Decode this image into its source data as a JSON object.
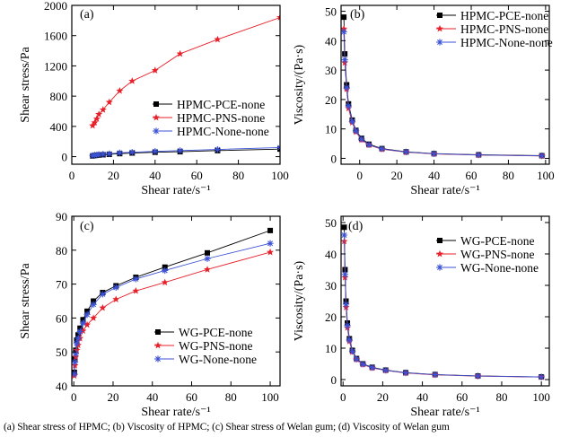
{
  "caption": "(a) Shear stress of HPMC; (b) Viscosity of HPMC; (c) Shear stress of Welan gum; (d) Viscosity of Welan gum",
  "chart_data": [
    {
      "panel": "(a)",
      "type": "line",
      "xlabel": "Shear rate/s⁻¹",
      "ylabel": "Shear stress/Pa",
      "xlim": [
        0,
        100
      ],
      "ylim": [
        -100,
        2000
      ],
      "xticks": [
        0,
        20,
        40,
        60,
        80,
        100
      ],
      "yticks": [
        0,
        400,
        800,
        1200,
        1600,
        2000
      ],
      "legend_position": "center-right",
      "series": [
        {
          "name": "HPMC-PCE-none",
          "color": "#000000",
          "marker": "square",
          "x": [
            10,
            11,
            12,
            13,
            15,
            18,
            23,
            29,
            40,
            52,
            70,
            100
          ],
          "y": [
            10,
            15,
            18,
            22,
            25,
            30,
            40,
            48,
            58,
            65,
            80,
            100
          ]
        },
        {
          "name": "HPMC-PNS-none",
          "color": "#e8202a",
          "marker": "star",
          "x": [
            10,
            11,
            12,
            13,
            15,
            18,
            23,
            29,
            40,
            52,
            70,
            100
          ],
          "y": [
            410,
            450,
            500,
            560,
            620,
            720,
            870,
            1000,
            1140,
            1360,
            1550,
            1840
          ]
        },
        {
          "name": "HPMC-None-none",
          "color": "#3b52d6",
          "marker": "asterisk",
          "x": [
            10,
            11,
            12,
            13,
            15,
            18,
            23,
            29,
            40,
            52,
            70,
            100
          ],
          "y": [
            15,
            20,
            22,
            28,
            32,
            38,
            50,
            58,
            70,
            80,
            95,
            120
          ]
        }
      ]
    },
    {
      "panel": "(b)",
      "type": "line",
      "xlabel": "Shear rate/s⁻¹",
      "ylabel": "Viscosity/(Pa·s)",
      "xlim": [
        -10,
        102
      ],
      "ylim": [
        -2,
        52
      ],
      "xticks": [
        0,
        20,
        40,
        60,
        80,
        100
      ],
      "yticks": [
        0,
        10,
        20,
        30,
        40,
        50
      ],
      "legend_position": "top-right",
      "series": [
        {
          "name": "HPMC-PCE-none",
          "color": "#000000",
          "marker": "square",
          "x": [
            -8.5,
            -8,
            -7,
            -6,
            -4,
            -2,
            1,
            5,
            12,
            25,
            40,
            64,
            98
          ],
          "y": [
            48,
            35.5,
            25,
            18.5,
            13,
            9.5,
            6.8,
            4.8,
            3.3,
            2.2,
            1.6,
            1.2,
            0.9
          ]
        },
        {
          "name": "HPMC-PNS-none",
          "color": "#e8202a",
          "marker": "star",
          "x": [
            -8.5,
            -8,
            -7,
            -6,
            -4,
            -2,
            1,
            5,
            12,
            25,
            40,
            64,
            98
          ],
          "y": [
            44,
            32.5,
            23.5,
            17,
            12.2,
            9,
            6.3,
            4.5,
            3.1,
            2.1,
            1.5,
            1.1,
            0.8
          ]
        },
        {
          "name": "HPMC-None-none",
          "color": "#3b52d6",
          "marker": "asterisk",
          "x": [
            -8.5,
            -8,
            -7,
            -6,
            -4,
            -2,
            1,
            5,
            12,
            25,
            40,
            64,
            98
          ],
          "y": [
            43,
            33.5,
            24,
            17.8,
            12.6,
            9.3,
            6.5,
            4.6,
            3.2,
            2.15,
            1.55,
            1.15,
            0.85
          ]
        }
      ]
    },
    {
      "panel": "(c)",
      "type": "line",
      "xlabel": "Shear rate/s⁻¹",
      "ylabel": "Shear stress/Pa",
      "xlim": [
        -1,
        105
      ],
      "ylim": [
        40,
        90
      ],
      "xticks": [
        0,
        20,
        40,
        60,
        80,
        100
      ],
      "yticks": [
        40,
        50,
        60,
        70,
        80,
        90
      ],
      "legend_position": "bottom-right",
      "series": [
        {
          "name": "WG-PCE-none",
          "color": "#000000",
          "marker": "square",
          "x": [
            0.3,
            0.6,
            1,
            1.5,
            2.2,
            3.2,
            4.7,
            6.8,
            10,
            14.7,
            21.5,
            31.6,
            46.4,
            68,
            100
          ],
          "y": [
            44,
            48,
            50.5,
            53.5,
            55,
            57,
            59.5,
            62,
            65,
            67.5,
            69.5,
            72,
            75,
            79.2,
            85.8
          ]
        },
        {
          "name": "WG-PNS-none",
          "color": "#e8202a",
          "marker": "star",
          "x": [
            0.3,
            0.6,
            1,
            1.5,
            2.2,
            3.2,
            4.7,
            6.8,
            10,
            14.7,
            21.5,
            31.6,
            46.4,
            68,
            100
          ],
          "y": [
            43,
            46,
            48.5,
            50.5,
            52,
            54,
            56.2,
            58,
            60,
            63,
            65.5,
            68,
            70.5,
            74.3,
            79.4
          ]
        },
        {
          "name": "WG-None-none",
          "color": "#3b52d6",
          "marker": "asterisk",
          "x": [
            0.3,
            0.6,
            1,
            1.5,
            2.2,
            3.2,
            4.7,
            6.8,
            10,
            14.7,
            21.5,
            31.6,
            46.4,
            68,
            100
          ],
          "y": [
            43.5,
            47,
            49.5,
            52.5,
            54,
            56,
            58.5,
            61,
            64,
            67,
            69,
            71.5,
            74,
            77.5,
            82
          ]
        }
      ]
    },
    {
      "panel": "(d)",
      "type": "line",
      "xlabel": "Shear rate/s⁻¹",
      "ylabel": "Viscosity/(Pa·s)",
      "xlim": [
        -1,
        104
      ],
      "ylim": [
        -2,
        52
      ],
      "xticks": [
        0,
        20,
        40,
        60,
        80,
        100
      ],
      "yticks": [
        0,
        10,
        20,
        30,
        40,
        50
      ],
      "legend_position": "top-right",
      "series": [
        {
          "name": "WG-PCE-none",
          "color": "#000000",
          "marker": "square",
          "x": [
            0.6,
            1,
            1.5,
            2.2,
            3.2,
            4.7,
            6.8,
            10,
            14.7,
            21.5,
            31.6,
            46.4,
            68,
            100
          ],
          "y": [
            48.5,
            35,
            25,
            18,
            13,
            9.3,
            6.7,
            5,
            3.9,
            3,
            2.2,
            1.6,
            1.15,
            0.85
          ]
        },
        {
          "name": "WG-PNS-none",
          "color": "#e8202a",
          "marker": "star",
          "x": [
            0.6,
            1,
            1.5,
            2.2,
            3.2,
            4.7,
            6.8,
            10,
            14.7,
            21.5,
            31.6,
            46.4,
            68,
            100
          ],
          "y": [
            44,
            32.5,
            23,
            16.5,
            12.2,
            8.8,
            6.4,
            4.8,
            3.7,
            2.9,
            2.1,
            1.5,
            1.1,
            0.8
          ]
        },
        {
          "name": "WG-None-none",
          "color": "#3b52d6",
          "marker": "asterisk",
          "x": [
            0.6,
            1,
            1.5,
            2.2,
            3.2,
            4.7,
            6.8,
            10,
            14.7,
            21.5,
            31.6,
            46.4,
            68,
            100
          ],
          "y": [
            46,
            33.5,
            24,
            17.2,
            12.6,
            9,
            6.5,
            4.9,
            3.8,
            2.95,
            2.15,
            1.55,
            1.12,
            0.82
          ]
        }
      ]
    }
  ]
}
